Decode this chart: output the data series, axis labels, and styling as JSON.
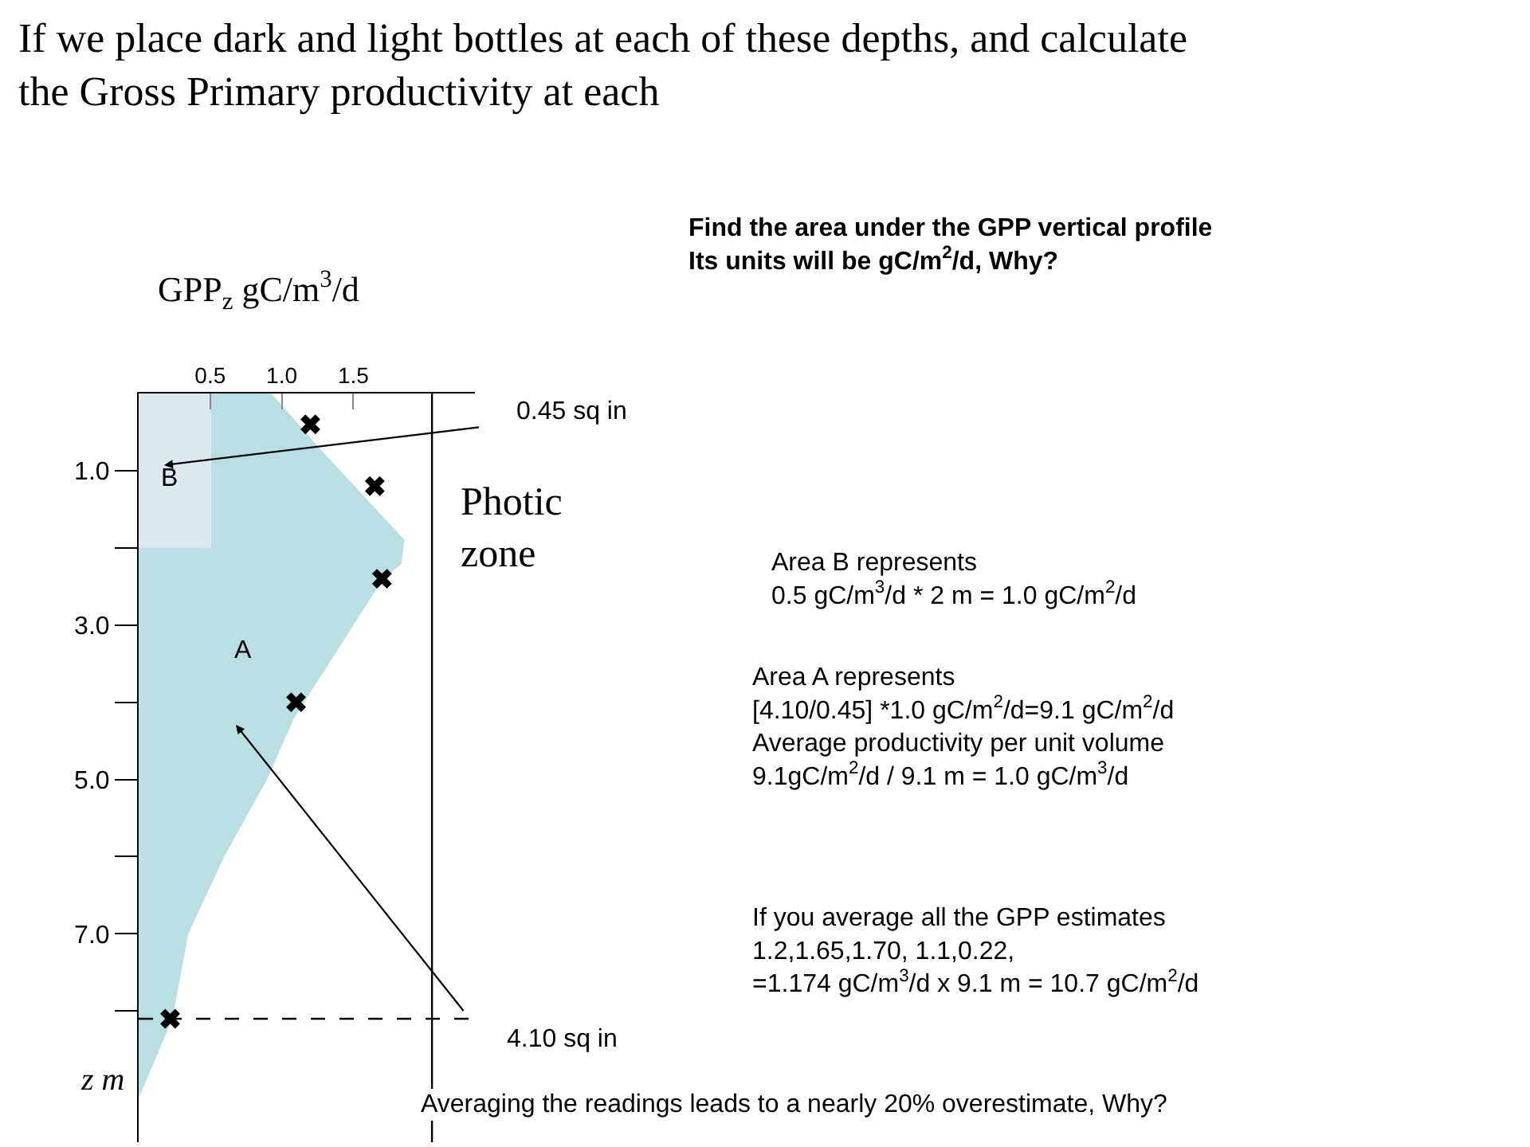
{
  "chart_data": {
    "type": "area",
    "title": "If we place dark and light bottles at each of these depths, and calculate\nthe Gross Primary productivity at each",
    "xlabel": "GPP$_{z}$ gC/m$^{3}$/d",
    "ylabel": "z m",
    "orientation": "horizontal",
    "xlim": [
      0,
      2.35
    ],
    "xticks": [
      {
        "value": 0.5,
        "label": "0.5"
      },
      {
        "value": 1,
        "label": "1.0"
      },
      {
        "value": 1.5,
        "label": "1.5"
      }
    ],
    "ylim": [
      9.7,
      0
    ],
    "yticks": [
      {
        "value": 1,
        "label": "1.0"
      },
      {
        "value": 2,
        "label": null
      },
      {
        "value": 3,
        "label": "3.0"
      },
      {
        "value": 4,
        "label": null
      },
      {
        "value": 5,
        "label": "5.0"
      },
      {
        "value": 6,
        "label": null
      },
      {
        "value": 7,
        "label": "7.0"
      },
      {
        "value": 8,
        "label": null
      }
    ],
    "grid": false,
    "legend": false,
    "series": [
      {
        "color": "#b9dfe3",
        "x": [
          0,
          0.7,
          1.3,
          1.9,
          2.2,
          2.4,
          4.2,
          5.0,
          6.0,
          7.0,
          8.1,
          9.1
        ],
        "values": [
          0.92,
          1.25,
          1.55,
          1.85,
          1.83,
          1.7,
          1.08,
          0.89,
          0.59,
          0.34,
          0.23,
          0
        ]
      },
      {
        "color": "#dde9ef",
        "x": [
          0,
          2
        ],
        "values": [
          0.5,
          0.5
        ]
      },
      {
        "type": "scatter",
        "color": "#000000",
        "marker": "cross",
        "x": [
          0.4,
          1.2,
          2.4,
          4.0,
          8.1
        ],
        "values": [
          1.2,
          1.65,
          1.7,
          1.1,
          0.22
        ]
      }
    ],
    "ref_lines": [
      {
        "axis": "x",
        "value": 2.05,
        "label": "Photic zone",
        "color": "#000000",
        "line_style": "solid"
      },
      {
        "axis": "y",
        "value": 8.1,
        "color": "#000000",
        "line_style": "dashed"
      }
    ],
    "annotations": [
      "B",
      "A",
      "0.45 sq in",
      "4.10 sq in",
      "Find the area under the GPP vertical profile\nIts units will be gC/m$^{2}$/d, Why?",
      "Area B represents\n0.5 gC/m$^{3}$/d * 2 m = 1.0 gC/m$^{2}$/d",
      "Area A represents\n[4.10/0.45] *1.0 gC/m$^{2}$/d=9.1 gC/m$^{2}$/d\nAverage productivity per unit volume\n9.1gC/m$^{2}$/d / 9.1 m = 1.0 gC/m$^{3}$/d",
      "If you average all the GPP estimates\n1.2,1.65,1.70, 1.1,0.22,\n=1.174 gC/m$^{3}$/d x 9.1 m = 10.7 gC/m$^{2}$/d",
      "Averaging the readings leads to a nearly 20% overestimate, Why?"
    ]
  }
}
